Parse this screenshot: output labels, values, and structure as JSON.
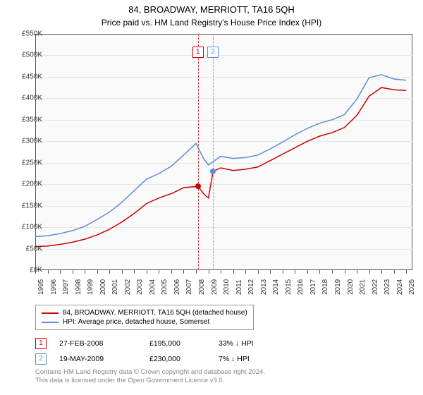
{
  "title": "84, BROADWAY, MERRIOTT, TA16 5QH",
  "subtitle": "Price paid vs. HM Land Registry's House Price Index (HPI)",
  "chart": {
    "type": "line",
    "background_color": "#fafafa",
    "grid_color": "#e6e6e6",
    "border_color": "#555555",
    "ylim": [
      0,
      550
    ],
    "ytick_step": 50,
    "ytick_prefix": "£",
    "ytick_suffix": "K",
    "xlim": [
      1995,
      2025.5
    ],
    "xticks": [
      1995,
      1996,
      1997,
      1998,
      1999,
      2000,
      2001,
      2002,
      2003,
      2004,
      2005,
      2006,
      2007,
      2008,
      2009,
      2010,
      2011,
      2012,
      2013,
      2014,
      2015,
      2016,
      2017,
      2018,
      2019,
      2020,
      2021,
      2022,
      2023,
      2024,
      2025
    ],
    "series": [
      {
        "key": "property",
        "label": "84, BROADWAY, MERRIOTT, TA16 5QH (detached house)",
        "color": "#cc0000",
        "line_width": 1.5,
        "points": [
          [
            1995,
            55
          ],
          [
            1996,
            56
          ],
          [
            1997,
            60
          ],
          [
            1998,
            65
          ],
          [
            1999,
            72
          ],
          [
            2000,
            82
          ],
          [
            2001,
            95
          ],
          [
            2002,
            112
          ],
          [
            2003,
            132
          ],
          [
            2004,
            155
          ],
          [
            2005,
            168
          ],
          [
            2006,
            178
          ],
          [
            2007,
            192
          ],
          [
            2008.15,
            195
          ],
          [
            2008.7,
            175
          ],
          [
            2009.0,
            168
          ],
          [
            2009.38,
            230
          ],
          [
            2010,
            238
          ],
          [
            2011,
            232
          ],
          [
            2012,
            235
          ],
          [
            2013,
            240
          ],
          [
            2014,
            255
          ],
          [
            2015,
            270
          ],
          [
            2016,
            285
          ],
          [
            2017,
            300
          ],
          [
            2018,
            312
          ],
          [
            2019,
            320
          ],
          [
            2020,
            332
          ],
          [
            2021,
            360
          ],
          [
            2022,
            405
          ],
          [
            2023,
            425
          ],
          [
            2024,
            420
          ],
          [
            2025,
            418
          ]
        ]
      },
      {
        "key": "hpi",
        "label": "HPI: Average price, detached house, Somerset",
        "color": "#5b8fd6",
        "line_width": 1.5,
        "points": [
          [
            1995,
            78
          ],
          [
            1996,
            80
          ],
          [
            1997,
            85
          ],
          [
            1998,
            92
          ],
          [
            1999,
            102
          ],
          [
            2000,
            118
          ],
          [
            2001,
            135
          ],
          [
            2002,
            158
          ],
          [
            2003,
            185
          ],
          [
            2004,
            212
          ],
          [
            2005,
            225
          ],
          [
            2006,
            242
          ],
          [
            2007,
            268
          ],
          [
            2008,
            295
          ],
          [
            2008.6,
            260
          ],
          [
            2009,
            245
          ],
          [
            2010,
            265
          ],
          [
            2011,
            260
          ],
          [
            2012,
            262
          ],
          [
            2013,
            268
          ],
          [
            2014,
            282
          ],
          [
            2015,
            298
          ],
          [
            2016,
            315
          ],
          [
            2017,
            330
          ],
          [
            2018,
            342
          ],
          [
            2019,
            350
          ],
          [
            2020,
            362
          ],
          [
            2021,
            398
          ],
          [
            2022,
            448
          ],
          [
            2023,
            455
          ],
          [
            2024,
            445
          ],
          [
            2025,
            442
          ]
        ]
      }
    ],
    "markers": [
      {
        "n": "1",
        "x": 2008.15,
        "y": 195,
        "color": "#cc0000"
      },
      {
        "n": "2",
        "x": 2009.38,
        "y": 230,
        "color": "#5b8fd6"
      }
    ]
  },
  "legend": {
    "items": [
      {
        "color": "#cc0000",
        "label": "84, BROADWAY, MERRIOTT, TA16 5QH (detached house)"
      },
      {
        "color": "#5b8fd6",
        "label": "HPI: Average price, detached house, Somerset"
      }
    ]
  },
  "sales": [
    {
      "n": "1",
      "color": "#cc0000",
      "date": "27-FEB-2008",
      "price": "£195,000",
      "delta": "33% ↓ HPI"
    },
    {
      "n": "2",
      "color": "#5b8fd6",
      "date": "19-MAY-2009",
      "price": "£230,000",
      "delta": "7% ↓ HPI"
    }
  ],
  "footer_line1": "Contains HM Land Registry data © Crown copyright and database right 2024.",
  "footer_line2": "This data is licensed under the Open Government Licence v3.0."
}
